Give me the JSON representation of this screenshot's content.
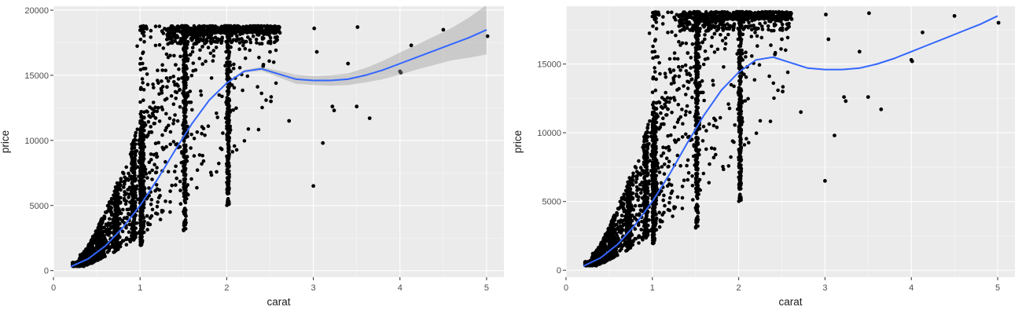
{
  "chart_data": [
    {
      "type": "scatter",
      "title": "",
      "xlabel": "carat",
      "ylabel": "price",
      "xlim": [
        0,
        5.2
      ],
      "ylim": [
        -500,
        20300
      ],
      "x_ticks": [
        0,
        1,
        2,
        3,
        4,
        5
      ],
      "y_ticks": [
        0,
        5000,
        10000,
        15000,
        20000
      ],
      "x_tick_labels": [
        "0",
        "1",
        "2",
        "3",
        "4",
        "5"
      ],
      "y_tick_labels": [
        "0",
        "5000",
        "10000",
        "15000",
        "20000"
      ],
      "grid": true,
      "smooth_color": "#3366ff",
      "point_color": "#000000",
      "show_confidence_band": true,
      "smooth": {
        "x": [
          0.2,
          0.4,
          0.6,
          0.8,
          1.0,
          1.2,
          1.4,
          1.6,
          1.8,
          2.0,
          2.2,
          2.4,
          2.6,
          2.8,
          3.0,
          3.2,
          3.4,
          3.6,
          3.8,
          4.0,
          4.2,
          4.4,
          4.6,
          4.8,
          5.0
        ],
        "y": [
          300,
          900,
          1900,
          3300,
          5000,
          7000,
          9200,
          11300,
          13100,
          14400,
          15300,
          15500,
          15100,
          14700,
          14600,
          14600,
          14700,
          15000,
          15400,
          15900,
          16400,
          16900,
          17400,
          17900,
          18500
        ],
        "lower": [
          250,
          850,
          1850,
          3250,
          4950,
          6950,
          9150,
          11250,
          13050,
          14350,
          15200,
          15350,
          14850,
          14350,
          14250,
          14200,
          14250,
          14450,
          14700,
          15050,
          15450,
          15800,
          16150,
          16350,
          16600
        ],
        "upper": [
          350,
          950,
          1950,
          3350,
          5050,
          7050,
          9250,
          11350,
          13150,
          14450,
          15400,
          15650,
          15350,
          15050,
          14950,
          15000,
          15150,
          15550,
          16100,
          16750,
          17350,
          18000,
          18650,
          19450,
          20400
        ]
      },
      "points": {
        "x": [
          0.3,
          0.31,
          0.35,
          0.4,
          0.5,
          0.55,
          0.62,
          0.7,
          0.71,
          0.76,
          0.82,
          0.9,
          0.91,
          1.0,
          1.01,
          1.05,
          1.09,
          1.12,
          1.21,
          1.31,
          1.41,
          1.5,
          1.51,
          1.55,
          1.61,
          1.72,
          1.8,
          2.0,
          2.01,
          2.1,
          2.2,
          2.3,
          2.42,
          2.5,
          2.51,
          2.56,
          2.61,
          2.72,
          3.0,
          3.01,
          3.04,
          3.11,
          3.22,
          3.24,
          3.4,
          3.5,
          3.51,
          3.65,
          4.0,
          4.01,
          4.13,
          4.5,
          5.01
        ],
        "y": [
          500,
          1200,
          700,
          1000,
          1600,
          2200,
          2800,
          3000,
          4200,
          4600,
          5400,
          4800,
          7800,
          5200,
          8800,
          9500,
          10400,
          11800,
          12500,
          14100,
          15800,
          11200,
          16900,
          18200,
          18500,
          17200,
          17900,
          8200,
          16000,
          18600,
          17600,
          18700,
          15700,
          16800,
          13000,
          17900,
          18300,
          11500,
          6500,
          18600,
          16800,
          9800,
          12600,
          12300,
          15900,
          12600,
          18700,
          11700,
          15300,
          15200,
          17300,
          18500,
          18000
        ]
      }
    },
    {
      "type": "scatter",
      "title": "",
      "xlabel": "carat",
      "ylabel": "price",
      "xlim": [
        0,
        5.2
      ],
      "ylim": [
        -500,
        19200
      ],
      "x_ticks": [
        0,
        1,
        2,
        3,
        4,
        5
      ],
      "y_ticks": [
        0,
        5000,
        10000,
        15000
      ],
      "x_tick_labels": [
        "0",
        "1",
        "2",
        "3",
        "4",
        "5"
      ],
      "y_tick_labels": [
        "0",
        "5000",
        "10000",
        "15000"
      ],
      "grid": true,
      "smooth_color": "#3366ff",
      "point_color": "#000000",
      "show_confidence_band": false,
      "smooth": {
        "x": [
          0.2,
          0.4,
          0.6,
          0.8,
          1.0,
          1.2,
          1.4,
          1.6,
          1.8,
          2.0,
          2.2,
          2.4,
          2.6,
          2.8,
          3.0,
          3.2,
          3.4,
          3.6,
          3.8,
          4.0,
          4.2,
          4.4,
          4.6,
          4.8,
          5.0
        ],
        "y": [
          300,
          900,
          1900,
          3300,
          5000,
          7000,
          9200,
          11300,
          13100,
          14400,
          15300,
          15500,
          15100,
          14700,
          14600,
          14600,
          14700,
          15000,
          15400,
          15900,
          16400,
          16900,
          17400,
          17900,
          18500
        ]
      },
      "points": {
        "x": [
          0.3,
          0.31,
          0.35,
          0.4,
          0.5,
          0.55,
          0.62,
          0.7,
          0.71,
          0.76,
          0.82,
          0.9,
          0.91,
          1.0,
          1.01,
          1.05,
          1.09,
          1.12,
          1.21,
          1.31,
          1.41,
          1.5,
          1.51,
          1.55,
          1.61,
          1.72,
          1.8,
          2.0,
          2.01,
          2.1,
          2.2,
          2.3,
          2.42,
          2.5,
          2.51,
          2.56,
          2.61,
          2.72,
          3.0,
          3.01,
          3.04,
          3.11,
          3.22,
          3.24,
          3.4,
          3.5,
          3.51,
          3.65,
          4.0,
          4.01,
          4.13,
          4.5,
          5.01
        ],
        "y": [
          500,
          1200,
          700,
          1000,
          1600,
          2200,
          2800,
          3000,
          4200,
          4600,
          5400,
          4800,
          7800,
          5200,
          8800,
          9500,
          10400,
          11800,
          12500,
          14100,
          15800,
          11200,
          16900,
          18200,
          18500,
          17200,
          17900,
          8200,
          16000,
          18600,
          17600,
          18700,
          15700,
          16800,
          13000,
          17900,
          18300,
          11500,
          6500,
          18600,
          16800,
          9800,
          12600,
          12300,
          15900,
          12600,
          18700,
          11700,
          15300,
          15200,
          17300,
          18500,
          18000
        ]
      }
    }
  ]
}
